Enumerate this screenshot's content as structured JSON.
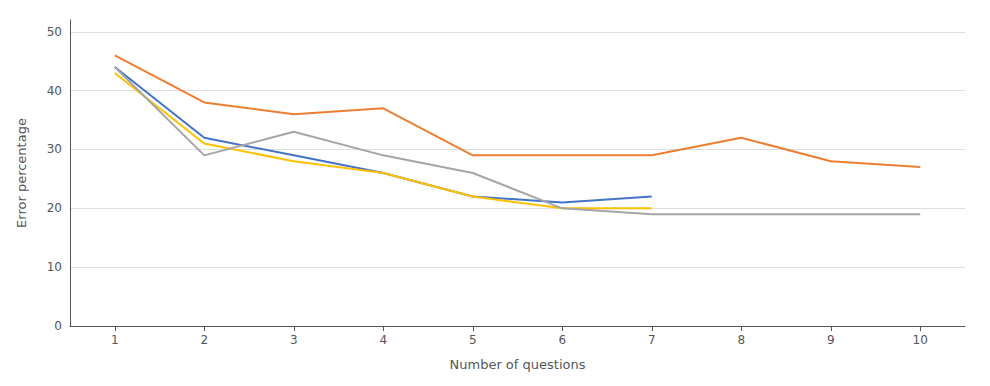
{
  "chart_data": {
    "type": "line",
    "xlabel": "Number of questions",
    "ylabel": "Error percentage",
    "x": [
      1,
      2,
      3,
      4,
      5,
      6,
      7,
      8,
      9,
      10
    ],
    "series": [
      {
        "color": "#4472C4",
        "values": [
          44,
          32,
          29,
          26,
          22,
          21,
          22,
          null,
          null,
          null
        ]
      },
      {
        "color": "#ED7D31",
        "values": [
          46,
          38,
          36,
          37,
          29,
          29,
          29,
          32,
          28,
          27
        ]
      },
      {
        "color": "#FFC000",
        "values": [
          43,
          31,
          28,
          26,
          22,
          20,
          20,
          null,
          null,
          null
        ]
      },
      {
        "color": "#A5A5A5",
        "values": [
          44,
          29,
          33,
          29,
          26,
          20,
          19,
          19,
          19,
          19
        ]
      }
    ],
    "xlim": [
      0.5,
      10.5
    ],
    "ylim": [
      0,
      52
    ],
    "xticks": [
      1,
      2,
      3,
      4,
      5,
      6,
      7,
      8,
      9,
      10
    ],
    "yticks": [
      0,
      10,
      20,
      30,
      40,
      50
    ],
    "grid": true
  }
}
